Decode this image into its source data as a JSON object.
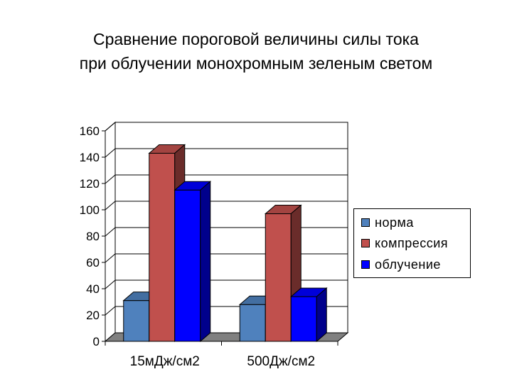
{
  "title_lines": [
    "Сравнение пороговой величины силы тока",
    "при облучении монохромным зеленым светом"
  ],
  "chart_data": {
    "type": "bar",
    "title": "Сравнение пороговой величины силы тока при облучении монохромным зеленым светом",
    "categories": [
      "15мДж/см2",
      "500Дж/см2"
    ],
    "series": [
      {
        "name": "норма",
        "color": "#4f81bd",
        "values": [
          31,
          28
        ]
      },
      {
        "name": "компрессия",
        "color": "#c0504d",
        "values": [
          143,
          97
        ]
      },
      {
        "name": "облучение",
        "color": "#0000ff",
        "values": [
          115,
          34
        ]
      }
    ],
    "ylim": [
      0,
      160
    ],
    "yticks": [
      0,
      20,
      40,
      60,
      80,
      100,
      120,
      140,
      160
    ],
    "grid": true,
    "style": "3d-clustered-column",
    "legend_position": "right"
  }
}
